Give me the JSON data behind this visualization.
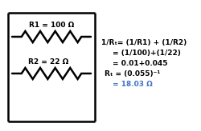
{
  "r1_label": "R1 = 100 Ω",
  "r2_label": "R2 = 22 Ω",
  "formula_line1": "1/Rₜ= (1/R1) + (1/R2)",
  "formula_line2": "= (1/100)+(1/22)",
  "formula_line3": "= 0.01+0.045",
  "formula_line4": "Rₜ = (0.055)⁻¹",
  "formula_line5": "= 18.03 Ω",
  "wire_color": "#000000",
  "resistor_color": "#000000",
  "formula_color": "#000000",
  "result_color": "#4472c4",
  "background_color": "#ffffff",
  "font_size": 6.5
}
